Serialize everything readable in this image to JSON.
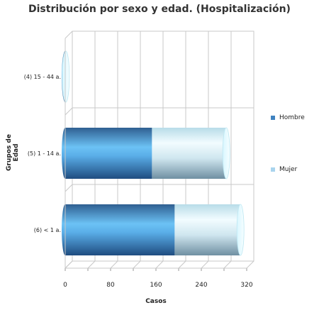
{
  "chart_data": {
    "type": "bar",
    "orientation": "horizontal",
    "stacked": true,
    "title": "Distribución por sexo y edad. (Hospitalización)",
    "xlabel": "Casos",
    "ylabel": "Grupos de Edad",
    "categories": [
      "(4) 15 - 44 a.",
      "(5) 1 - 14 a.",
      "(6) < 1 a."
    ],
    "series": [
      {
        "name": "Hombre",
        "values": [
          1,
          153,
          193
        ],
        "color": "#3f82c0"
      },
      {
        "name": "Mujer",
        "values": [
          0,
          131,
          116
        ],
        "color": "#a9d4ee"
      }
    ],
    "xlim": [
      0,
      320
    ],
    "xticks": [
      0,
      80,
      160,
      240,
      320
    ],
    "grid": true,
    "legend_position": "right"
  }
}
